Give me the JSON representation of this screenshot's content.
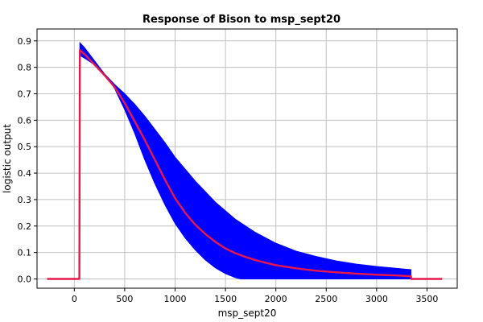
{
  "chart_data": {
    "type": "line",
    "title": "Response of Bison to msp_sept20",
    "xlabel": "msp_sept20",
    "ylabel": "logistic output",
    "xlim": [
      -370,
      3800
    ],
    "ylim": [
      -0.035,
      0.945
    ],
    "x_ticks": [
      0,
      500,
      1000,
      1500,
      2000,
      2500,
      3000,
      3500
    ],
    "y_ticks": [
      0.0,
      0.1,
      0.2,
      0.3,
      0.4,
      0.5,
      0.6,
      0.7,
      0.8,
      0.9
    ],
    "x_tick_labels": [
      "0",
      "500",
      "1000",
      "1500",
      "2000",
      "2500",
      "3000",
      "3500"
    ],
    "y_tick_labels": [
      "0.0",
      "0.1",
      "0.2",
      "0.3",
      "0.4",
      "0.5",
      "0.6",
      "0.7",
      "0.8",
      "0.9"
    ],
    "grid": true,
    "colors": {
      "mean": "#e8174c",
      "band": "#0000ff",
      "grid": "#c0c0c0"
    },
    "series": [
      {
        "role": "mean",
        "x": [
          -270,
          50,
          55,
          100,
          200,
          300,
          400,
          500,
          600,
          700,
          800,
          900,
          1000,
          1100,
          1200,
          1300,
          1400,
          1500,
          1600,
          1700,
          1800,
          1900,
          2000,
          2200,
          2400,
          2600,
          2800,
          3000,
          3200,
          3340,
          3345,
          3650
        ],
        "y": [
          0.0,
          0.0,
          0.865,
          0.85,
          0.81,
          0.77,
          0.725,
          0.665,
          0.595,
          0.525,
          0.45,
          0.375,
          0.305,
          0.25,
          0.205,
          0.17,
          0.14,
          0.115,
          0.097,
          0.083,
          0.071,
          0.061,
          0.052,
          0.04,
          0.031,
          0.025,
          0.02,
          0.016,
          0.013,
          0.01,
          0.0,
          0.0
        ]
      },
      {
        "role": "band-upper",
        "x": [
          55,
          100,
          200,
          300,
          400,
          500,
          600,
          700,
          800,
          900,
          1000,
          1200,
          1400,
          1600,
          1800,
          2000,
          2200,
          2400,
          2600,
          2800,
          3000,
          3200,
          3340
        ],
        "y": [
          0.893,
          0.875,
          0.825,
          0.775,
          0.735,
          0.7,
          0.66,
          0.615,
          0.565,
          0.515,
          0.46,
          0.37,
          0.29,
          0.225,
          0.175,
          0.135,
          0.105,
          0.085,
          0.068,
          0.056,
          0.047,
          0.04,
          0.035
        ]
      },
      {
        "role": "band-lower",
        "x": [
          55,
          100,
          200,
          300,
          400,
          500,
          600,
          700,
          800,
          900,
          1000,
          1100,
          1200,
          1300,
          1400,
          1500,
          1600,
          1650
        ],
        "y": [
          0.845,
          0.835,
          0.81,
          0.775,
          0.72,
          0.64,
          0.55,
          0.45,
          0.36,
          0.28,
          0.21,
          0.155,
          0.11,
          0.072,
          0.042,
          0.02,
          0.005,
          0.0
        ]
      }
    ]
  }
}
